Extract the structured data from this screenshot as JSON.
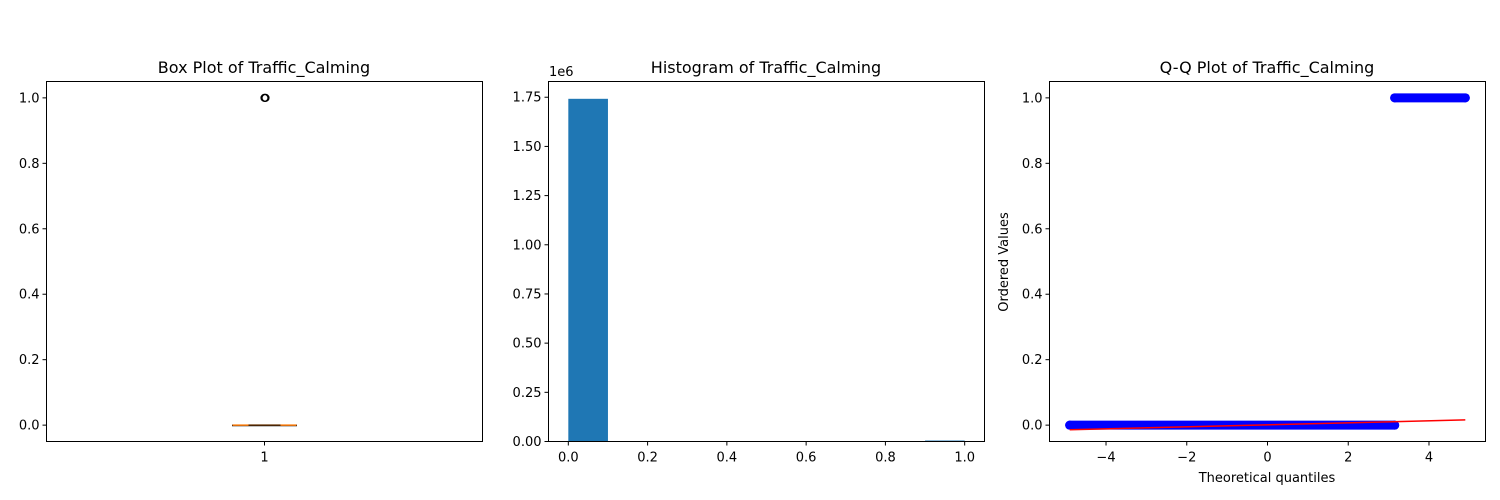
{
  "chart_data": [
    {
      "type": "box",
      "title": "Box Plot of Traffic_Calming",
      "xlabel": "",
      "ylabel": "",
      "categories": [
        "1"
      ],
      "box": {
        "q1": 0.0,
        "median": 0.0,
        "q3": 0.0,
        "whisker_low": 0.0,
        "whisker_high": 0.0
      },
      "outliers": [
        1.0
      ],
      "ylim": [
        -0.05,
        1.05
      ],
      "yticks": [
        0.0,
        0.2,
        0.4,
        0.6,
        0.8,
        1.0
      ],
      "yticklabels": [
        "0.0",
        "0.2",
        "0.4",
        "0.6",
        "0.8",
        "1.0"
      ],
      "colors": {
        "median": "#ff7f0e",
        "box": "#000000"
      }
    },
    {
      "type": "bar",
      "subtype": "histogram",
      "title": "Histogram of Traffic_Calming",
      "xlabel": "",
      "ylabel": "",
      "offset_label": "1e6",
      "bin_edges": [
        0.0,
        0.1,
        0.2,
        0.3,
        0.4,
        0.5,
        0.6,
        0.7,
        0.8,
        0.9,
        1.0
      ],
      "counts": [
        1742000,
        0,
        0,
        0,
        0,
        0,
        0,
        0,
        0,
        5000
      ],
      "xlim": [
        -0.05,
        1.05
      ],
      "ylim": [
        0,
        1830000
      ],
      "xticks": [
        0.0,
        0.2,
        0.4,
        0.6,
        0.8,
        1.0
      ],
      "xticklabels": [
        "0.0",
        "0.2",
        "0.4",
        "0.6",
        "0.8",
        "1.0"
      ],
      "yticks": [
        0,
        250000,
        500000,
        750000,
        1000000,
        1250000,
        1500000,
        1750000
      ],
      "yticklabels": [
        "0.00",
        "0.25",
        "0.50",
        "0.75",
        "1.00",
        "1.25",
        "1.50",
        "1.75"
      ],
      "colors": {
        "bar": "#1f77b4"
      }
    },
    {
      "type": "scatter",
      "title": "Q-Q Plot of Traffic_Calming",
      "xlabel": "Theoretical quantiles",
      "ylabel": "Ordered Values",
      "series": [
        {
          "x_range": [
            -4.9,
            3.15
          ],
          "y": 0.0
        },
        {
          "x_range": [
            3.15,
            4.9
          ],
          "y": 1.0
        }
      ],
      "fit_line": {
        "x": [
          -4.9,
          4.9
        ],
        "y": [
          -0.014,
          0.016
        ]
      },
      "xlim": [
        -5.4,
        5.4
      ],
      "ylim": [
        -0.05,
        1.05
      ],
      "xticks": [
        -4,
        -2,
        0,
        2,
        4
      ],
      "xticklabels": [
        "−4",
        "−2",
        "0",
        "2",
        "4"
      ],
      "yticks": [
        0.0,
        0.2,
        0.4,
        0.6,
        0.8,
        1.0
      ],
      "yticklabels": [
        "0.0",
        "0.2",
        "0.4",
        "0.6",
        "0.8",
        "1.0"
      ],
      "colors": {
        "points": "#0000ff",
        "fit": "#ff0000"
      }
    }
  ]
}
